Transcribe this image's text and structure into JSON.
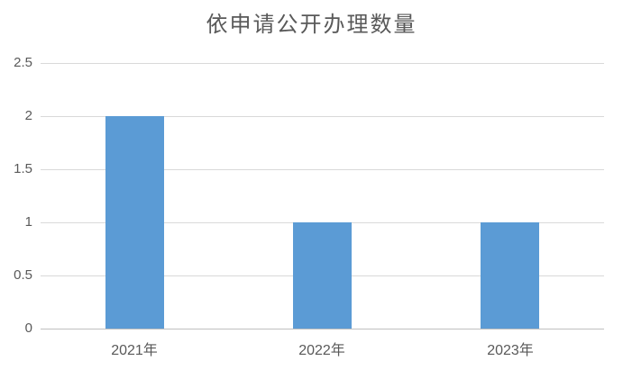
{
  "chart_data": {
    "type": "bar",
    "title": "依申请公开办理数量",
    "categories": [
      "2021年",
      "2022年",
      "2023年"
    ],
    "values": [
      2,
      1,
      1
    ],
    "xlabel": "",
    "ylabel": "",
    "ylim": [
      0,
      2.5
    ],
    "yticks": [
      0,
      0.5,
      1,
      1.5,
      2,
      2.5
    ],
    "grid": true,
    "legend_position": "none",
    "bar_color": "#5B9BD5",
    "gridline_color": "#D9D9D9",
    "axis_line_color": "#BFBFBF",
    "text_color": "#595959",
    "background_color": "#FFFFFF"
  }
}
